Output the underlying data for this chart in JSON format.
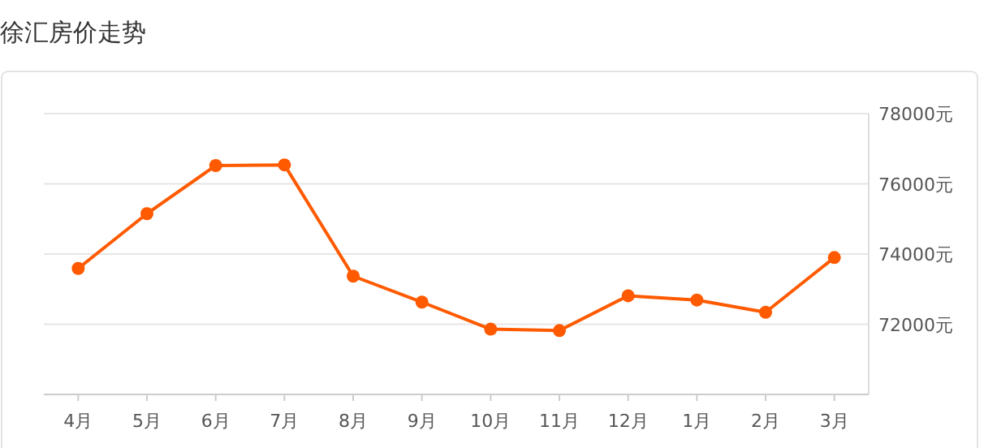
{
  "chart_data": {
    "type": "line",
    "title": "徐汇房价走势",
    "categories": [
      "4月",
      "5月",
      "6月",
      "7月",
      "8月",
      "9月",
      "10月",
      "11月",
      "12月",
      "1月",
      "2月",
      "3月"
    ],
    "series": [
      {
        "color": "#ff5a00",
        "values": [
          73590,
          75150,
          76520,
          76540,
          73370,
          72630,
          71860,
          71820,
          72810,
          72690,
          72340,
          73900
        ]
      }
    ],
    "ylim": [
      70000,
      78000
    ],
    "yticks": [
      {
        "value": 72000,
        "label": "72000元"
      },
      {
        "value": 74000,
        "label": "74000元"
      },
      {
        "value": 76000,
        "label": "76000元"
      },
      {
        "value": 78000,
        "label": "78000元"
      }
    ],
    "grid": "y",
    "marker": "circle",
    "line_style": "solid"
  }
}
